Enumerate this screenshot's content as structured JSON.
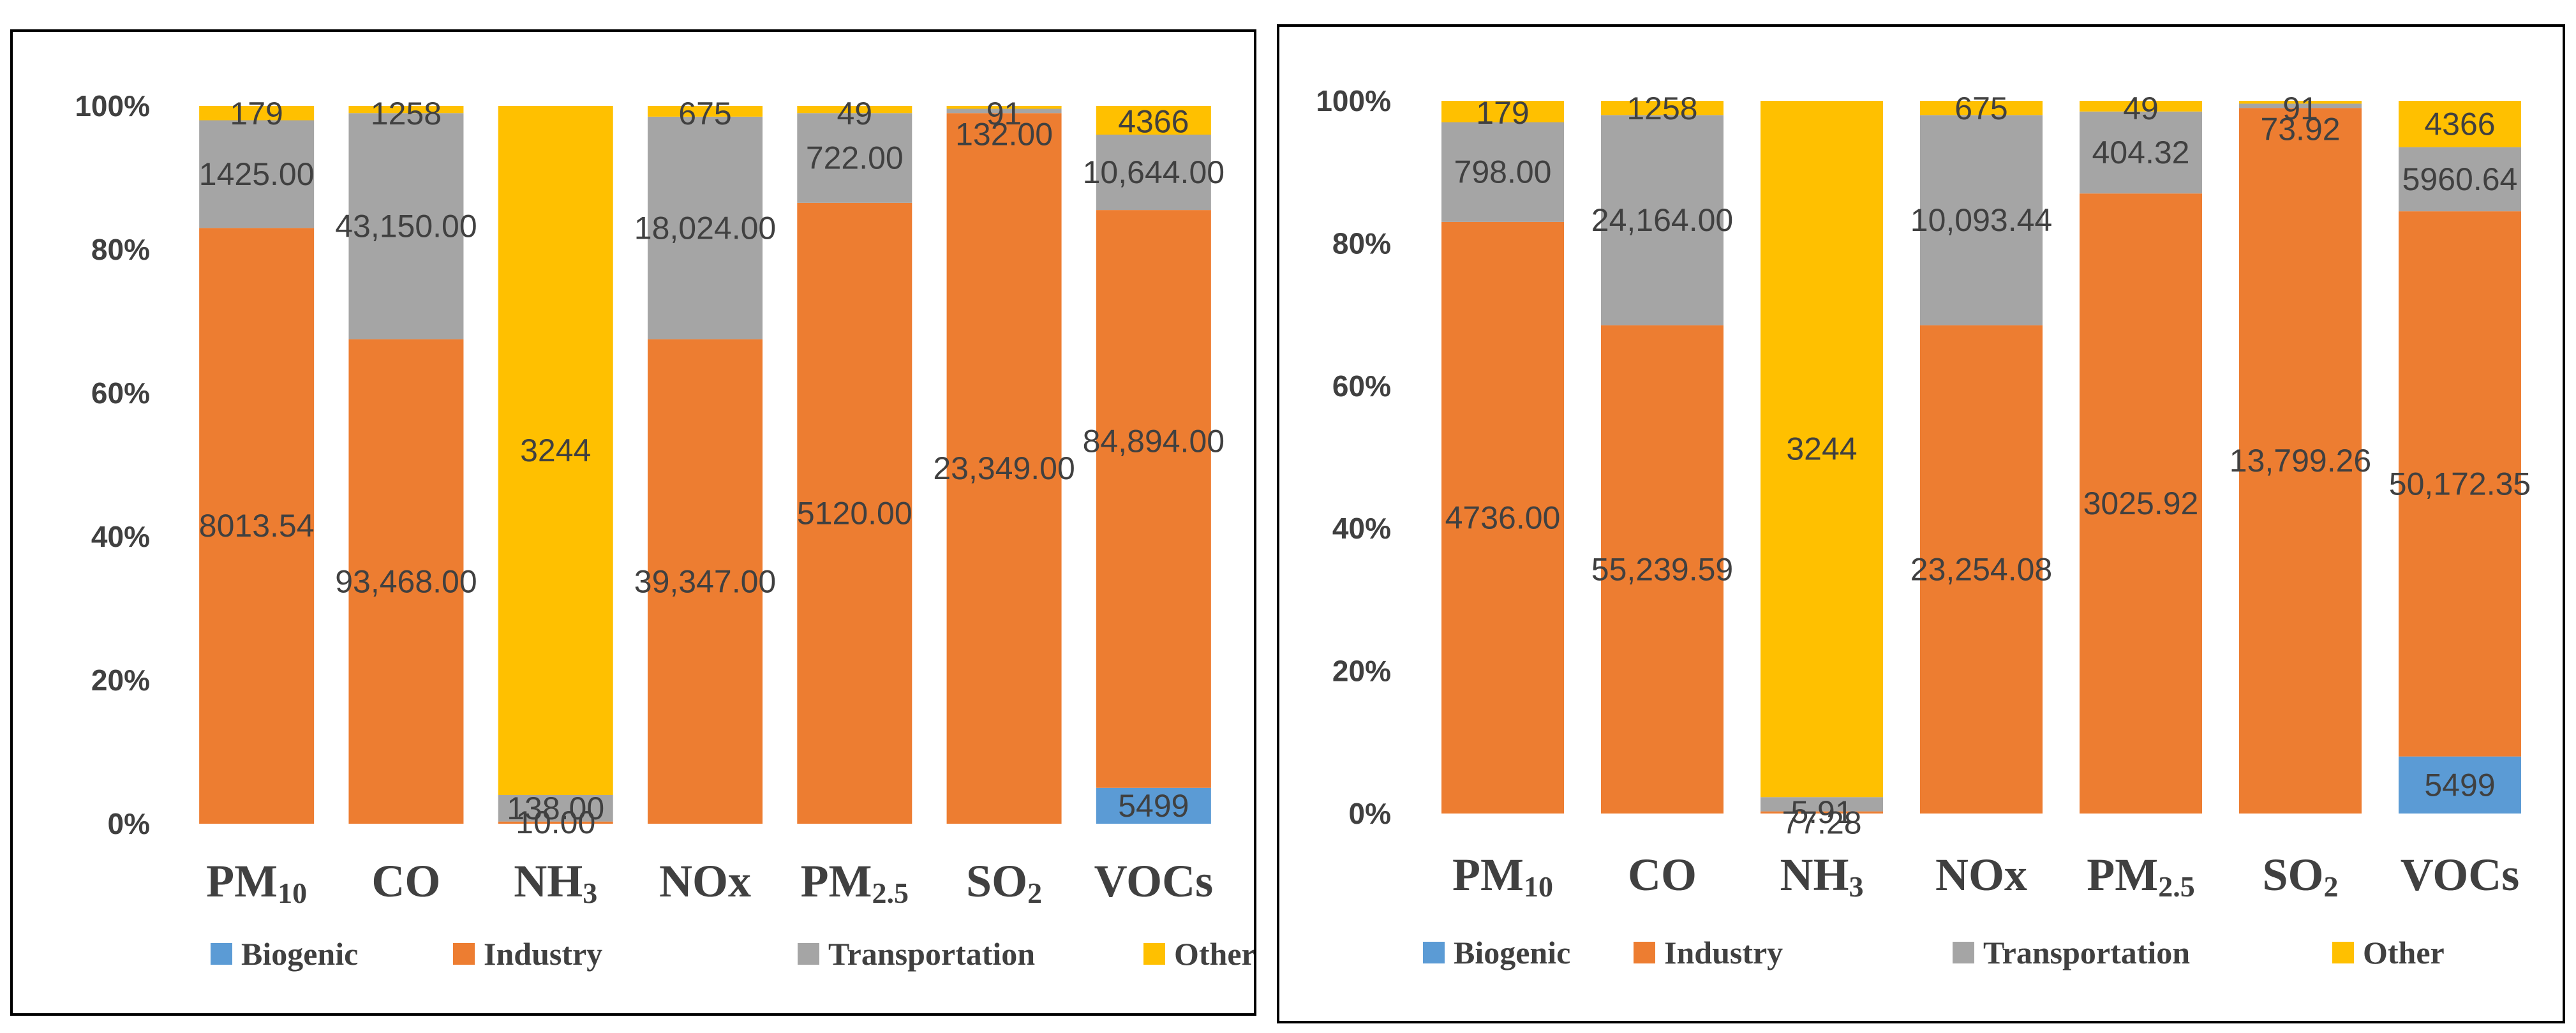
{
  "chart_data": [
    {
      "type": "bar",
      "stacked": "percent",
      "title": "",
      "xlabel": "",
      "ylabel": "",
      "ylim": [
        0,
        100
      ],
      "yticks": [
        "0%",
        "20%",
        "40%",
        "60%",
        "80%",
        "100%"
      ],
      "categories": [
        {
          "base": "PM",
          "sub": "10"
        },
        {
          "base": "CO",
          "sub": ""
        },
        {
          "base": "NH",
          "sub": "3"
        },
        {
          "base": "NOx",
          "sub": ""
        },
        {
          "base": "PM",
          "sub": "2.5"
        },
        {
          "base": "SO",
          "sub": "2"
        },
        {
          "base": "VOCs",
          "sub": ""
        }
      ],
      "legend_position": "bottom",
      "series": [
        {
          "name": "Biogenic",
          "color": "#5B9BD5",
          "percent": [
            0,
            0,
            0,
            0,
            0,
            0,
            5.0
          ],
          "labels": [
            "",
            "",
            "",
            "",
            "",
            "",
            "5499"
          ]
        },
        {
          "name": "Industry",
          "color": "#ED7D31",
          "percent": [
            83.0,
            67.5,
            0.3,
            67.5,
            86.5,
            99.0,
            80.5
          ],
          "labels": [
            "8013.54",
            "93,468.00",
            "10.00",
            "39,347.00",
            "5120.00",
            "23,349.00",
            ""
          ],
          "label_text_extra": "84,894.00"
        },
        {
          "name": "Transportation",
          "color": "#A5A5A5",
          "percent": [
            15.0,
            31.5,
            3.7,
            31.0,
            12.5,
            0.6,
            10.5
          ],
          "labels": [
            "1425.00",
            "43,150.00",
            "138.00",
            "18,024.00",
            "722.00",
            "132.00",
            "10,644.00"
          ]
        },
        {
          "name": "Other",
          "color": "#FFC000",
          "percent": [
            2.0,
            1.0,
            96.0,
            1.5,
            1.0,
            0.4,
            4.0
          ],
          "labels": [
            "179",
            "1258",
            "3244",
            "675",
            "49",
            "91",
            "4366"
          ]
        }
      ]
    },
    {
      "type": "bar",
      "stacked": "percent",
      "title": "",
      "xlabel": "",
      "ylabel": "",
      "ylim": [
        0,
        100
      ],
      "yticks": [
        "0%",
        "20%",
        "40%",
        "60%",
        "80%",
        "100%"
      ],
      "categories": [
        {
          "base": "PM",
          "sub": "10"
        },
        {
          "base": "CO",
          "sub": ""
        },
        {
          "base": "NH",
          "sub": "3"
        },
        {
          "base": "NOx",
          "sub": ""
        },
        {
          "base": "PM",
          "sub": "2.5"
        },
        {
          "base": "SO",
          "sub": "2"
        },
        {
          "base": "VOCs",
          "sub": ""
        }
      ],
      "legend_position": "bottom",
      "series": [
        {
          "name": "Biogenic",
          "color": "#5B9BD5",
          "percent": [
            0,
            0,
            0,
            0,
            0,
            0,
            8.0
          ],
          "labels": [
            "",
            "",
            "",
            "",
            "",
            "",
            "5499"
          ]
        },
        {
          "name": "Industry",
          "color": "#ED7D31",
          "percent": [
            83.0,
            68.5,
            0.3,
            68.5,
            87.0,
            99.0,
            76.5
          ],
          "labels": [
            "4736.00",
            "55,239.59",
            "5.91",
            "23,254.08",
            "3025.92",
            "13,799.26",
            "50,172.35"
          ]
        },
        {
          "name": "Transportation",
          "color": "#A5A5A5",
          "percent": [
            14.0,
            29.5,
            2.0,
            29.5,
            11.5,
            0.6,
            9.0
          ],
          "labels": [
            "798.00",
            "24,164.00",
            "77.28",
            "10,093.44",
            "404.32",
            "73.92",
            "5960.64"
          ]
        },
        {
          "name": "Other",
          "color": "#FFC000",
          "percent": [
            3.0,
            2.0,
            97.7,
            2.0,
            1.5,
            0.4,
            6.5
          ],
          "labels": [
            "179",
            "1258",
            "3244",
            "675",
            "49",
            "91",
            "4366"
          ]
        }
      ]
    }
  ]
}
